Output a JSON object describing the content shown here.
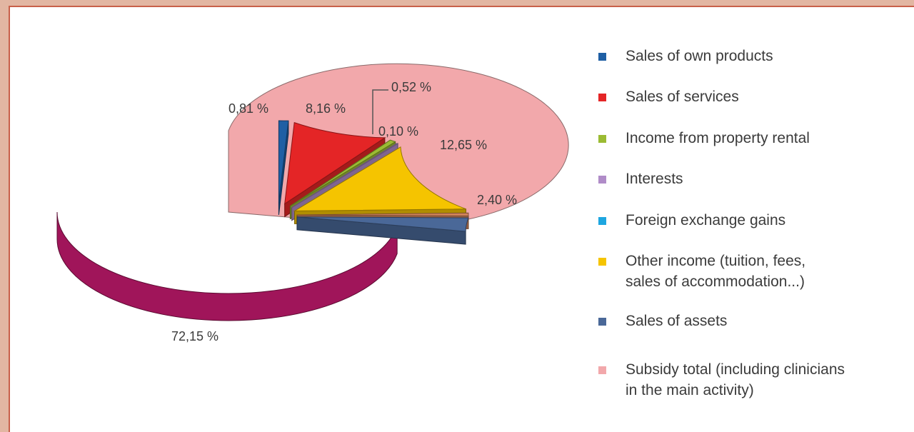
{
  "chart_data": {
    "type": "pie",
    "slices": [
      {
        "label": "Sales of own products",
        "value": 0.81,
        "display": "0,81 %",
        "color": "#1f5fa4"
      },
      {
        "label": "Sales of services",
        "value": 8.16,
        "display": "8,16 %",
        "color": "#e42526"
      },
      {
        "label": "Income from property rental",
        "value": 0.52,
        "display": "0,52 %",
        "color": "#9bbb33"
      },
      {
        "label": "Interests",
        "value": 0.1,
        "display": "0,10 %",
        "color": "#b08cc8"
      },
      {
        "label": "Foreign exchange gains",
        "value": 0.0,
        "display": "",
        "color": "#1ea6e0"
      },
      {
        "label": "Other income (tuition, fees, sales of accommodation...)",
        "value": 12.65,
        "display": "12,65 %",
        "color": "#f5c400"
      },
      {
        "label": "Sales of assets",
        "value": 2.4,
        "display": "2,40 %",
        "color": "#4a6898"
      },
      {
        "label": "Subsidy total (including clinicians in the main activity)",
        "value": 72.15,
        "display": "72,15 %",
        "color": "#f2a8ab"
      }
    ],
    "extra_slice": {
      "value": 0.52,
      "color": "#d2845a"
    },
    "legend_placement": "right",
    "legend": [
      {
        "lines": [
          "Sales of own products"
        ],
        "color": "#1f5fa4"
      },
      {
        "lines": [
          "Sales of services"
        ],
        "color": "#e42526"
      },
      {
        "lines": [
          "Income from property rental"
        ],
        "color": "#9bbb33"
      },
      {
        "lines": [
          "Interests"
        ],
        "color": "#b08cc8"
      },
      {
        "lines": [
          "Foreign exchange gains"
        ],
        "color": "#1ea6e0"
      },
      {
        "lines": [
          "Other income (tuition, fees,",
          "sales of accommodation...)"
        ],
        "color": "#f5c400"
      },
      {
        "lines": [
          "Sales of assets"
        ],
        "color": "#4a6898"
      },
      {
        "lines": [
          "Subsidy total (including clinicians",
          "in the main activity)"
        ],
        "color": "#f2a8ab"
      }
    ],
    "side_colors": {
      "subsidy": "#a0155a"
    }
  }
}
